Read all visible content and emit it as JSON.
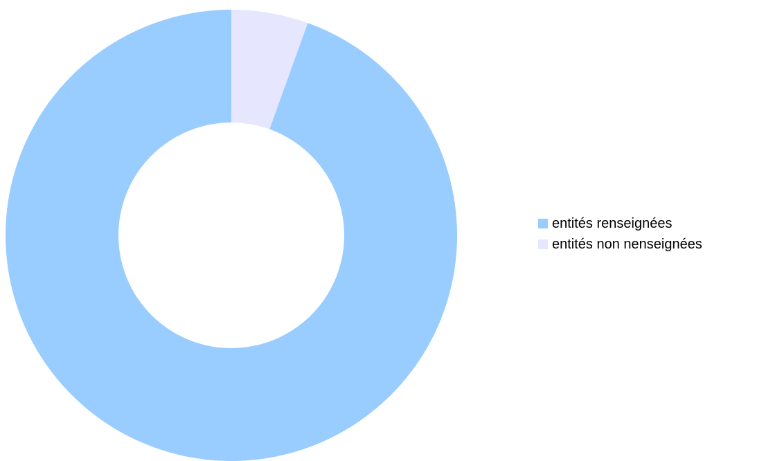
{
  "chart_data": {
    "type": "pie",
    "variant": "donut",
    "title": "",
    "categories": [
      "entités renseignées",
      "entités non nenseignées"
    ],
    "values": [
      94.5,
      5.5
    ],
    "colors": [
      "#99ccff",
      "#e6e6ff"
    ],
    "legend": {
      "placement": "right",
      "entries": [
        "entités renseignées",
        "entités non nenseignées"
      ]
    }
  }
}
